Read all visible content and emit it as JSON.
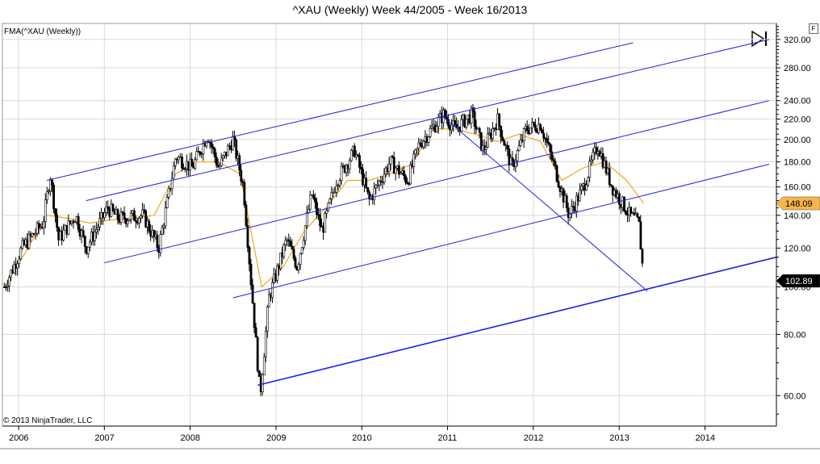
{
  "title": "^XAU (Weekly)  Week 44/2005 - Week 16/2013",
  "indicator_label": "FMA(^XAU (Weekly))",
  "copyright": "© 2013 NinjaTrader, LLC",
  "panel_button": "F",
  "icons": {
    "play": "skip-forward-icon"
  },
  "colors": {
    "background": "#ffffff",
    "grid": "#d9d9d9",
    "up_candle": "#ffffff",
    "down_candle": "#000000",
    "candle_edge": "#000000",
    "ma_line": "#f2a51c",
    "channel_lines": "#1f1fe0",
    "last_price_marker": "#000000",
    "ma_price_marker": "#f8b54a"
  },
  "chart_data": {
    "type": "candlestick",
    "title": "^XAU (Weekly)  Week 44/2005 - Week 16/2013",
    "y_scale": "log",
    "ylim": [
      52,
      345
    ],
    "xlim": [
      "2005-10-24",
      "2014-11-01"
    ],
    "grid": true,
    "x_tick_labels": [
      "2006",
      "2007",
      "2008",
      "2009",
      "2010",
      "2011",
      "2012",
      "2013",
      "2014"
    ],
    "x_tick_dates": [
      "2006-01-01",
      "2007-01-01",
      "2008-01-01",
      "2009-01-01",
      "2010-01-01",
      "2011-01-01",
      "2012-01-01",
      "2013-01-01",
      "2014-01-01"
    ],
    "y_ticks": [
      60,
      80,
      100,
      120,
      140,
      160,
      180,
      200,
      220,
      240,
      280,
      320
    ],
    "y_tick_labels": [
      "60.00",
      "80.00",
      "100.00",
      "120.00",
      "140.00",
      "160.00",
      "180.00",
      "200.00",
      "220.00",
      "240.00",
      "280.00",
      "320.00"
    ],
    "last_price": {
      "value": 102.89,
      "label": "102.89"
    },
    "ma_last": {
      "value": 148.09,
      "label": "148.09"
    },
    "series": [
      {
        "name": "FMA(^XAU (Weekly))",
        "type": "line",
        "points": [
          [
            "2005-11-01",
            100
          ],
          [
            "2006-02-01",
            118
          ],
          [
            "2006-05-01",
            140
          ],
          [
            "2006-08-01",
            138
          ],
          [
            "2006-11-01",
            135
          ],
          [
            "2007-02-01",
            137
          ],
          [
            "2007-05-01",
            138
          ],
          [
            "2007-08-01",
            140
          ],
          [
            "2007-11-01",
            170
          ],
          [
            "2008-02-01",
            180
          ],
          [
            "2008-05-01",
            180
          ],
          [
            "2008-08-01",
            170
          ],
          [
            "2008-11-01",
            100
          ],
          [
            "2009-02-01",
            110
          ],
          [
            "2009-05-01",
            130
          ],
          [
            "2009-08-01",
            145
          ],
          [
            "2009-11-01",
            165
          ],
          [
            "2010-02-01",
            165
          ],
          [
            "2010-05-01",
            170
          ],
          [
            "2010-08-01",
            178
          ],
          [
            "2010-11-01",
            210
          ],
          [
            "2011-02-01",
            210
          ],
          [
            "2011-05-01",
            205
          ],
          [
            "2011-08-01",
            198
          ],
          [
            "2011-11-01",
            205
          ],
          [
            "2012-02-01",
            198
          ],
          [
            "2012-05-01",
            165
          ],
          [
            "2012-08-01",
            175
          ],
          [
            "2012-11-01",
            180
          ],
          [
            "2013-02-01",
            165
          ],
          [
            "2013-04-15",
            148.09
          ]
        ]
      }
    ],
    "candles": {
      "anchors": [
        [
          "2005-11-01",
          100
        ],
        [
          "2006-01-15",
          120
        ],
        [
          "2006-04-15",
          135
        ],
        [
          "2006-05-15",
          170
        ],
        [
          "2006-06-20",
          125
        ],
        [
          "2006-09-01",
          140
        ],
        [
          "2006-10-15",
          120
        ],
        [
          "2007-01-15",
          145
        ],
        [
          "2007-03-01",
          138
        ],
        [
          "2007-06-15",
          140
        ],
        [
          "2007-08-20",
          120
        ],
        [
          "2007-11-01",
          185
        ],
        [
          "2008-01-10",
          175
        ],
        [
          "2008-03-15",
          205
        ],
        [
          "2008-05-01",
          175
        ],
        [
          "2008-07-01",
          200
        ],
        [
          "2008-08-15",
          160
        ],
        [
          "2008-10-25",
          60
        ],
        [
          "2008-12-01",
          95
        ],
        [
          "2009-02-15",
          125
        ],
        [
          "2009-04-01",
          110
        ],
        [
          "2009-06-01",
          155
        ],
        [
          "2009-07-15",
          130
        ],
        [
          "2009-09-15",
          165
        ],
        [
          "2009-12-01",
          190
        ],
        [
          "2010-02-01",
          150
        ],
        [
          "2010-05-01",
          180
        ],
        [
          "2010-07-15",
          165
        ],
        [
          "2010-09-01",
          195
        ],
        [
          "2010-12-15",
          225
        ],
        [
          "2011-02-01",
          210
        ],
        [
          "2011-04-15",
          225
        ],
        [
          "2011-06-01",
          190
        ],
        [
          "2011-08-01",
          220
        ],
        [
          "2011-10-01",
          175
        ],
        [
          "2011-12-01",
          210
        ],
        [
          "2012-02-01",
          215
        ],
        [
          "2012-04-01",
          175
        ],
        [
          "2012-06-01",
          140
        ],
        [
          "2012-08-01",
          160
        ],
        [
          "2012-10-01",
          195
        ],
        [
          "2012-12-01",
          160
        ],
        [
          "2013-02-15",
          140
        ],
        [
          "2013-03-25",
          135
        ],
        [
          "2013-04-15",
          102.89
        ]
      ]
    },
    "trend_lines": [
      {
        "from": [
          "2006-05-01",
          165
        ],
        "to": [
          "2013-03-01",
          315
        ]
      },
      {
        "from": [
          "2006-10-15",
          150
        ],
        "to": [
          "2014-10-01",
          320
        ]
      },
      {
        "from": [
          "2007-01-01",
          112
        ],
        "to": [
          "2014-10-01",
          240
        ]
      },
      {
        "from": [
          "2008-07-01",
          95
        ],
        "to": [
          "2014-10-01",
          178
        ]
      },
      {
        "from": [
          "2008-10-15",
          63
        ],
        "to": [
          "2014-11-01",
          115
        ]
      },
      {
        "from": [
          "2010-12-01",
          225
        ],
        "to": [
          "2013-05-01",
          98
        ]
      }
    ]
  }
}
